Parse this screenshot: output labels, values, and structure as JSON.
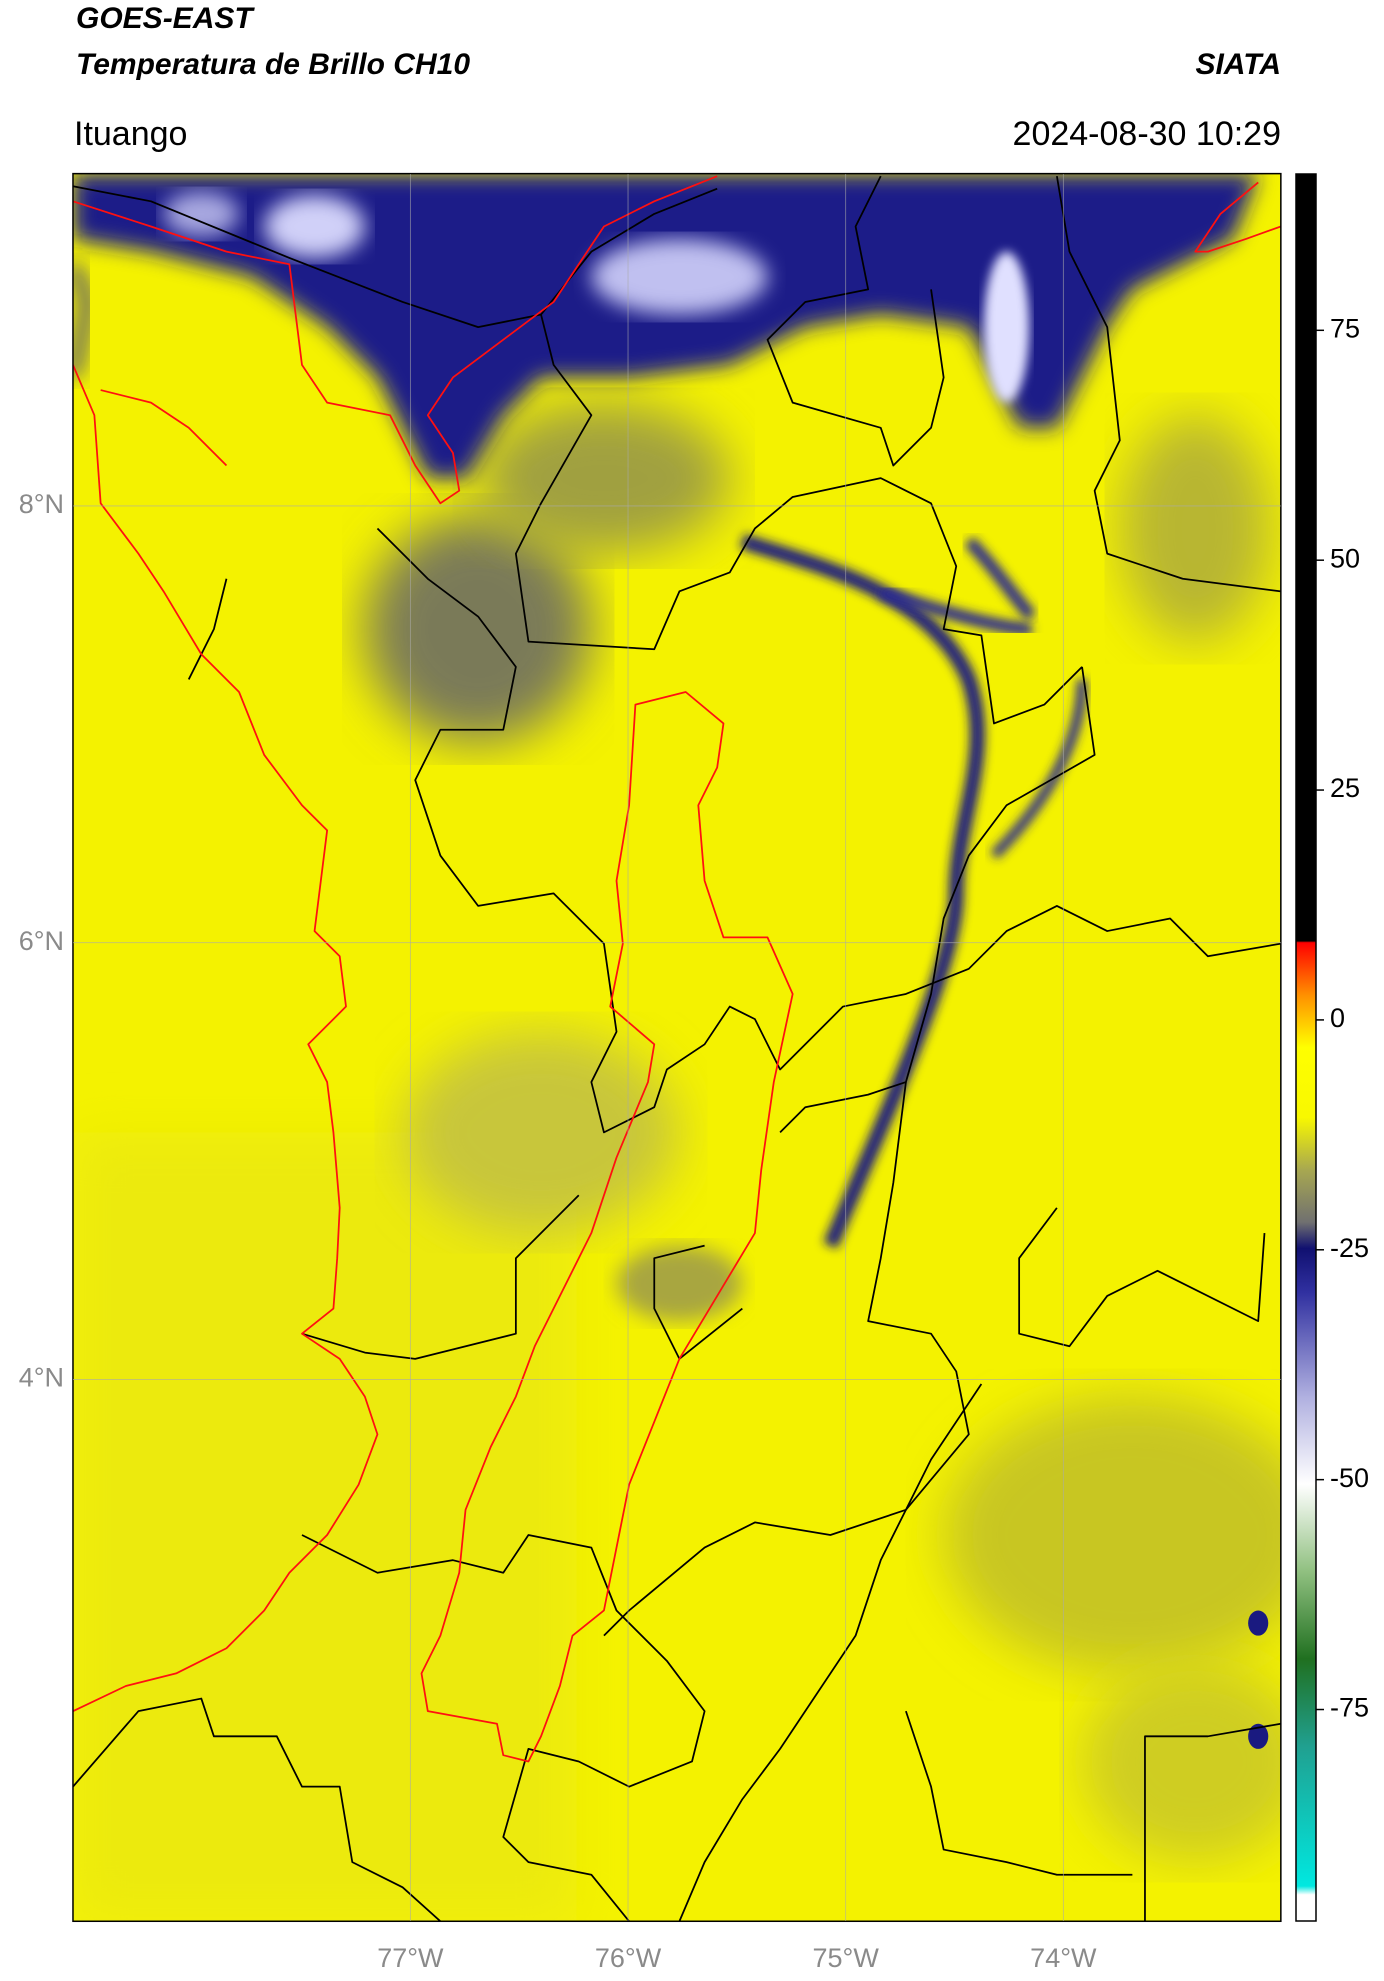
{
  "chart_data": {
    "type": "map",
    "title": "GOES-EAST",
    "subtitle": "Temperatura de Brillo CH10",
    "source": "SIATA",
    "location": "Ituango",
    "datetime": "2024-08-30 10:29",
    "xlim": [
      -78.55,
      -73.0
    ],
    "ylim": [
      1.52,
      9.52
    ],
    "xticks": [
      {
        "value": -77,
        "label": "77°W"
      },
      {
        "value": -76,
        "label": "76°W"
      },
      {
        "value": -75,
        "label": "75°W"
      },
      {
        "value": -74,
        "label": "74°W"
      }
    ],
    "yticks": [
      {
        "value": 8,
        "label": "8°N"
      },
      {
        "value": 6,
        "label": "6°N"
      },
      {
        "value": 4,
        "label": "4°N"
      }
    ],
    "grid": true,
    "colorbar": {
      "lim": [
        -98,
        92
      ],
      "ticks": [
        75,
        50,
        25,
        0,
        -25,
        -50,
        -75
      ]
    }
  }
}
